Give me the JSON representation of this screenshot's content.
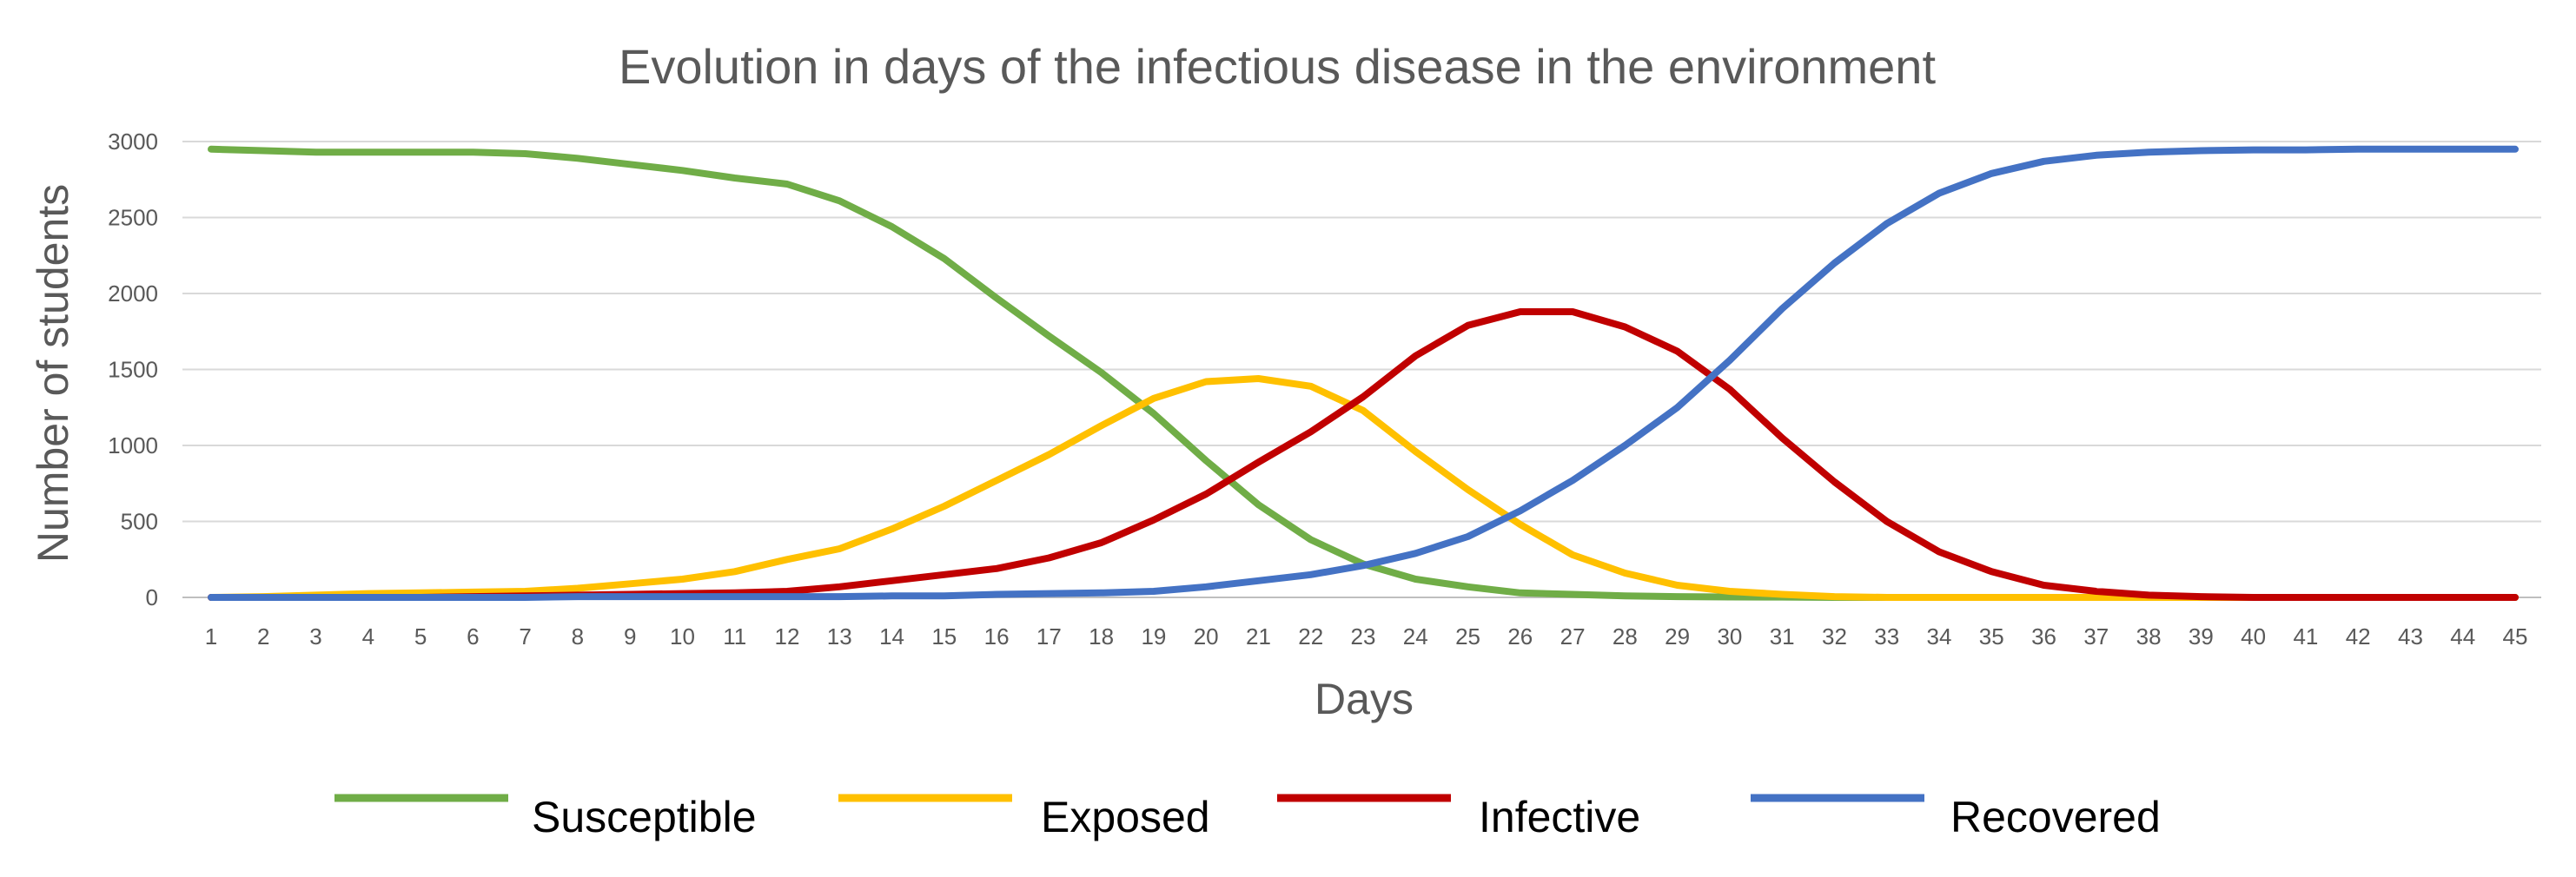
{
  "chart_data": {
    "type": "line",
    "title": "Evolution in days of the infectious disease in the environment",
    "xlabel": "Days",
    "ylabel": "Number of students",
    "ylim": [
      0,
      3000
    ],
    "yticks": [
      0,
      500,
      1000,
      1500,
      2000,
      2500,
      3000
    ],
    "grid": "horizontal",
    "legend_position": "bottom",
    "x": [
      "1",
      "2",
      "3",
      "4",
      "5",
      "6",
      "7",
      "8",
      "9",
      "10",
      "11",
      "12",
      "13",
      "14",
      "15",
      "16",
      "17",
      "18",
      "19",
      "20",
      "21",
      "22",
      "23",
      "24",
      "25",
      "26",
      "27",
      "28",
      "29",
      "30",
      "31",
      "32",
      "33",
      "34",
      "35",
      "36",
      "37",
      "38",
      "39",
      "40",
      "41",
      "42",
      "43",
      "44",
      "45"
    ],
    "series": [
      {
        "name": "Susceptible",
        "color": "#70AD47",
        "values": [
          2950,
          2940,
          2930,
          2930,
          2930,
          2930,
          2920,
          2890,
          2850,
          2810,
          2760,
          2720,
          2610,
          2440,
          2230,
          1970,
          1720,
          1480,
          1210,
          900,
          610,
          380,
          220,
          120,
          70,
          30,
          20,
          10,
          5,
          3,
          2,
          0,
          0,
          0,
          0,
          0,
          0,
          0,
          0,
          0,
          0,
          0,
          0,
          0,
          0
        ]
      },
      {
        "name": "Exposed",
        "color": "#FFC000",
        "values": [
          0,
          5,
          15,
          25,
          30,
          35,
          40,
          60,
          90,
          120,
          170,
          250,
          320,
          450,
          600,
          770,
          940,
          1130,
          1310,
          1420,
          1440,
          1390,
          1230,
          960,
          710,
          480,
          280,
          160,
          80,
          40,
          20,
          5,
          0,
          0,
          0,
          0,
          0,
          0,
          0,
          0,
          0,
          0,
          0,
          0,
          0
        ]
      },
      {
        "name": "Infective",
        "color": "#C00000",
        "values": [
          0,
          0,
          0,
          0,
          0,
          5,
          10,
          15,
          20,
          25,
          30,
          40,
          70,
          110,
          150,
          190,
          260,
          360,
          510,
          680,
          890,
          1090,
          1320,
          1590,
          1790,
          1880,
          1880,
          1780,
          1620,
          1370,
          1050,
          760,
          500,
          300,
          170,
          80,
          40,
          15,
          5,
          0,
          0,
          0,
          0,
          0,
          0
        ]
      },
      {
        "name": "Recovered",
        "color": "#4472C4",
        "values": [
          0,
          0,
          0,
          0,
          0,
          0,
          0,
          5,
          5,
          5,
          5,
          5,
          5,
          10,
          10,
          20,
          25,
          30,
          40,
          70,
          110,
          150,
          210,
          290,
          400,
          570,
          770,
          1000,
          1250,
          1560,
          1900,
          2200,
          2460,
          2660,
          2790,
          2870,
          2910,
          2930,
          2940,
          2945,
          2945,
          2950,
          2950,
          2950,
          2950
        ]
      }
    ]
  }
}
